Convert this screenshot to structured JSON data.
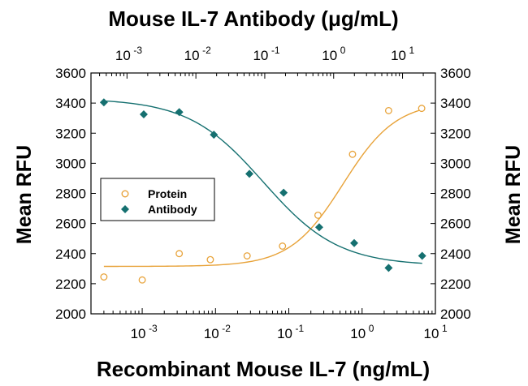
{
  "chart_data": {
    "type": "scatter",
    "title_top": "Mouse IL-7 Antibody (μg/mL)",
    "xlabel": "Recombinant Mouse IL-7 (ng/mL)",
    "ylabel": "Mean RFU",
    "ylabel_right": "Mean RFU",
    "xscale": "log",
    "xlim": [
      0.0002,
      10
    ],
    "ylim": [
      2000,
      3600
    ],
    "yticks": [
      2000,
      2200,
      2400,
      2600,
      2800,
      3000,
      3200,
      3400,
      3600
    ],
    "xticks_bottom": [
      {
        "value": 0.001,
        "base": "10",
        "exp": "-3"
      },
      {
        "value": 0.01,
        "base": "10",
        "exp": "-2"
      },
      {
        "value": 0.1,
        "base": "10",
        "exp": "-1"
      },
      {
        "value": 1,
        "base": "10",
        "exp": "0"
      },
      {
        "value": 10,
        "base": "10",
        "exp": "1"
      }
    ],
    "top_axis": {
      "xlim": [
        0.0003,
        30
      ],
      "xticks": [
        {
          "value": 0.001,
          "base": "10",
          "exp": "-3"
        },
        {
          "value": 0.01,
          "base": "10",
          "exp": "-2"
        },
        {
          "value": 0.1,
          "base": "10",
          "exp": "-1"
        },
        {
          "value": 1,
          "base": "10",
          "exp": "0"
        },
        {
          "value": 10,
          "base": "10",
          "exp": "1"
        }
      ]
    },
    "legend": {
      "position": "left-middle"
    },
    "series": [
      {
        "name": "Protein",
        "color": "#e8a33a",
        "marker": "open-circle",
        "x": [
          0.0003,
          0.001,
          0.0032,
          0.0085,
          0.027,
          0.082,
          0.25,
          0.74,
          2.3,
          6.5
        ],
        "y": [
          2245,
          2225,
          2400,
          2360,
          2385,
          2450,
          2655,
          3060,
          3350,
          3365
        ],
        "fit": {
          "bottom": 2315,
          "top": 3410,
          "ec50": 0.55,
          "hill": 1.2
        }
      },
      {
        "name": "Antibody",
        "color": "#157070",
        "marker": "filled-diamond",
        "x": [
          0.0003,
          0.00105,
          0.0032,
          0.0095,
          0.029,
          0.085,
          0.26,
          0.78,
          2.3,
          6.6
        ],
        "y": [
          3405,
          3325,
          3340,
          3190,
          2930,
          2805,
          2575,
          2470,
          2305,
          2385
        ],
        "fit": {
          "bottom": 2320,
          "top": 3430,
          "ec50": 0.045,
          "hill": -0.85
        }
      }
    ]
  }
}
